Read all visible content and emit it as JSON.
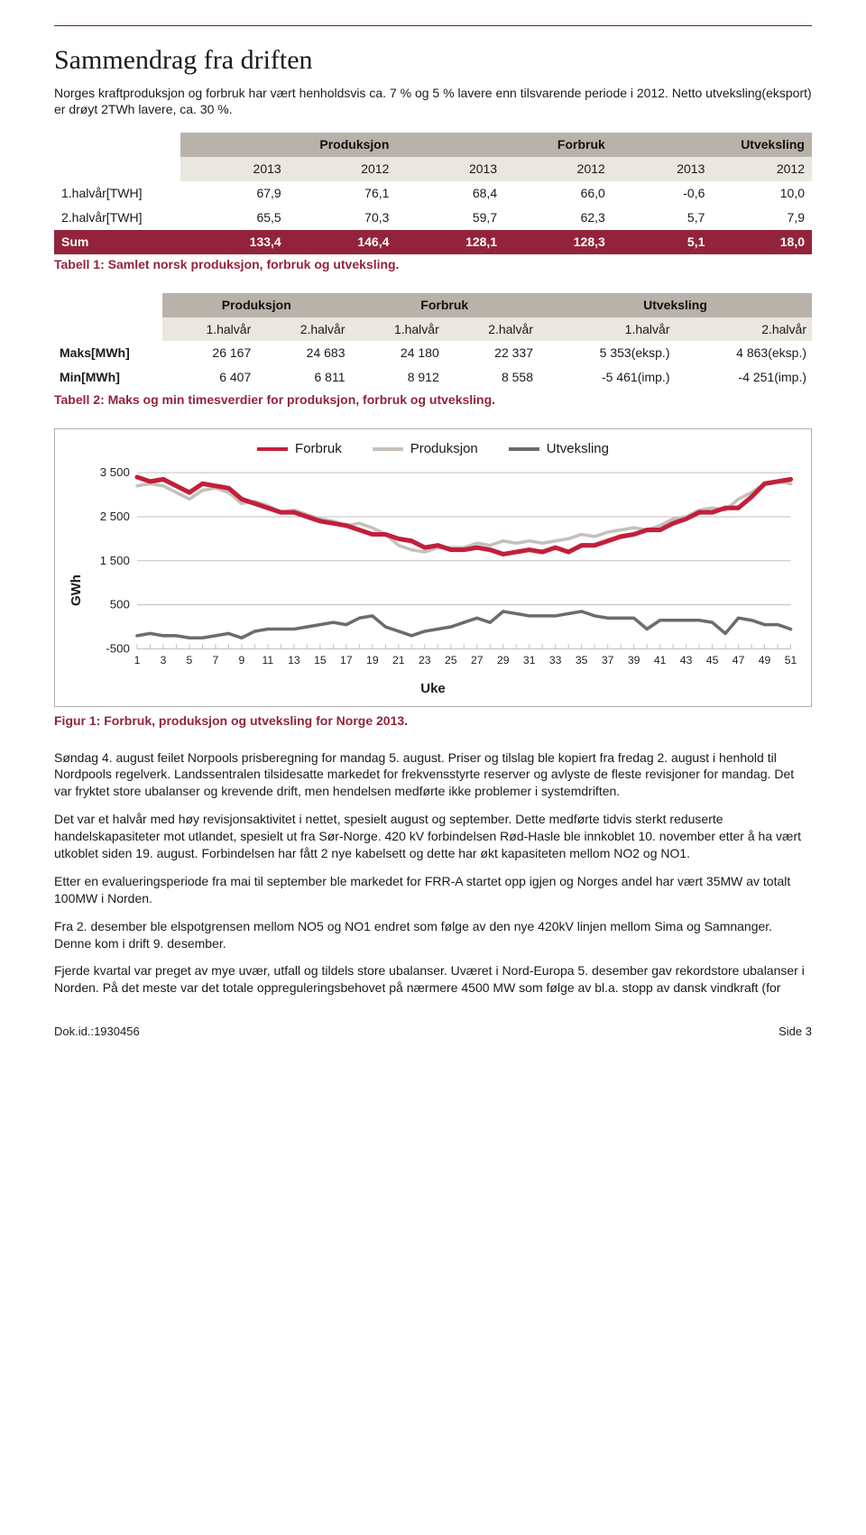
{
  "title": "Sammendrag fra driften",
  "intro": "Norges kraftproduksjon og forbruk har vært henholdsvis ca. 7 % og 5 % lavere enn tilsvarende periode i 2012. Netto utveksling(eksport) er drøyt 2TWh lavere, ca. 30 %.",
  "table1": {
    "group_headers": [
      "Produksjon",
      "Forbruk",
      "Utveksling"
    ],
    "sub_headers": [
      "2013",
      "2012",
      "2013",
      "2012",
      "2013",
      "2012"
    ],
    "rows": [
      {
        "label": "1.halvår[TWH]",
        "cells": [
          "67,9",
          "76,1",
          "68,4",
          "66,0",
          "-0,6",
          "10,0"
        ]
      },
      {
        "label": "2.halvår[TWH]",
        "cells": [
          "65,5",
          "70,3",
          "59,7",
          "62,3",
          "5,7",
          "7,9"
        ]
      }
    ],
    "sum": {
      "label": "Sum",
      "cells": [
        "133,4",
        "146,4",
        "128,1",
        "128,3",
        "5,1",
        "18,0"
      ]
    },
    "caption": "Tabell 1: Samlet norsk produksjon, forbruk og utveksling."
  },
  "table2": {
    "group_headers": [
      "Produksjon",
      "Forbruk",
      "Utveksling"
    ],
    "sub_headers": [
      "1.halvår",
      "2.halvår",
      "1.halvår",
      "2.halvår",
      "1.halvår",
      "2.halvår"
    ],
    "rows": [
      {
        "label": "Maks[MWh]",
        "cells": [
          "26 167",
          "24 683",
          "24 180",
          "22 337",
          "5 353(eksp.)",
          "4 863(eksp.)"
        ]
      },
      {
        "label": "Min[MWh]",
        "cells": [
          "6 407",
          "6 811",
          "8 912",
          "8 558",
          "-5 461(imp.)",
          "-4 251(imp.)"
        ]
      }
    ],
    "caption": "Tabell 2: Maks og min timesverdier for produksjon, forbruk og utveksling."
  },
  "chart": {
    "type": "line",
    "legend": [
      {
        "label": "Forbruk",
        "color": "#c1203a"
      },
      {
        "label": "Produksjon",
        "color": "#c6c0ba"
      },
      {
        "label": "Utveksling",
        "color": "#6e6c6a"
      }
    ],
    "y_axis": {
      "label": "GWh",
      "min": -500,
      "max": 3500,
      "ticks": [
        "3 500",
        "2 500",
        "1 500",
        "500",
        "-500"
      ],
      "tick_values": [
        3500,
        2500,
        1500,
        500,
        -500
      ],
      "label_fontsize": 15,
      "grid_color": "#bfbfbf"
    },
    "x_axis": {
      "label": "Uke",
      "ticks": [
        1,
        3,
        5,
        7,
        9,
        11,
        13,
        15,
        17,
        19,
        21,
        23,
        25,
        27,
        29,
        31,
        33,
        35,
        37,
        39,
        41,
        43,
        45,
        47,
        49,
        51
      ]
    },
    "series": {
      "forbruk": [
        3400,
        3300,
        3350,
        3200,
        3050,
        3250,
        3200,
        3150,
        2900,
        2800,
        2700,
        2600,
        2600,
        2500,
        2400,
        2350,
        2300,
        2200,
        2100,
        2100,
        2000,
        1950,
        1800,
        1850,
        1750,
        1750,
        1800,
        1750,
        1650,
        1700,
        1750,
        1700,
        1800,
        1700,
        1850,
        1850,
        1950,
        2050,
        2100,
        2200,
        2200,
        2350,
        2450,
        2600,
        2600,
        2700,
        2700,
        2950,
        3250,
        3300,
        3350
      ],
      "produksjon": [
        3200,
        3250,
        3200,
        3050,
        2900,
        3100,
        3150,
        3050,
        2800,
        2850,
        2750,
        2600,
        2650,
        2550,
        2450,
        2400,
        2300,
        2350,
        2250,
        2100,
        1850,
        1750,
        1700,
        1800,
        1800,
        1800,
        1900,
        1850,
        1950,
        1900,
        1950,
        1900,
        1950,
        2000,
        2100,
        2050,
        2150,
        2200,
        2250,
        2200,
        2300,
        2450,
        2500,
        2650,
        2700,
        2650,
        2900,
        3050,
        3250,
        3300,
        3250
      ],
      "utveksling": [
        -200,
        -150,
        -200,
        -200,
        -250,
        -250,
        -200,
        -150,
        -250,
        -100,
        -50,
        -50,
        -50,
        0,
        50,
        100,
        50,
        200,
        250,
        0,
        -100,
        -200,
        -100,
        -50,
        0,
        100,
        200,
        100,
        350,
        300,
        250,
        250,
        250,
        300,
        350,
        250,
        200,
        200,
        200,
        -50,
        150,
        150,
        150,
        150,
        100,
        -150,
        200,
        150,
        50,
        50,
        -50
      ]
    },
    "background_color": "#ffffff",
    "line_width": 3.5,
    "forbruk_line_width": 5
  },
  "chart_caption": "Figur 1: Forbruk, produksjon og utveksling for Norge 2013.",
  "paragraphs": [
    "Søndag 4. august feilet Norpools prisberegning for mandag 5. august. Priser og tilslag ble kopiert fra fredag 2. august i henhold til Nordpools regelverk. Landssentralen tilsidesatte markedet for frekvensstyrte reserver og avlyste de fleste revisjoner for mandag. Det var fryktet store ubalanser og krevende drift, men hendelsen medførte ikke problemer i systemdriften.",
    "Det var et halvår med høy revisjonsaktivitet i nettet, spesielt august og september. Dette medførte tidvis sterkt reduserte handelskapasiteter mot utlandet, spesielt ut fra Sør-Norge. 420 kV forbindelsen Rød-Hasle ble innkoblet 10. november etter å ha vært utkoblet siden 19. august. Forbindelsen har fått 2 nye kabelsett og dette har økt kapasiteten mellom NO2 og NO1.",
    "Etter en evalueringsperiode fra mai til september ble markedet for FRR-A startet opp igjen og Norges andel har vært 35MW av totalt 100MW i Norden.",
    "Fra 2. desember ble elspotgrensen mellom NO5 og NO1 endret som følge av den nye 420kV linjen mellom Sima og Samnanger. Denne kom i drift 9. desember.",
    "Fjerde kvartal var preget av mye uvær, utfall og tildels store ubalanser. Uværet i Nord-Europa 5. desember gav rekordstore ubalanser i Norden. På det meste var det totale oppreguleringsbehovet på nærmere 4500 MW som følge av bl.a. stopp av dansk vindkraft (for"
  ],
  "footer": {
    "left": "Dok.id.:1930456",
    "right": "Side 3"
  }
}
